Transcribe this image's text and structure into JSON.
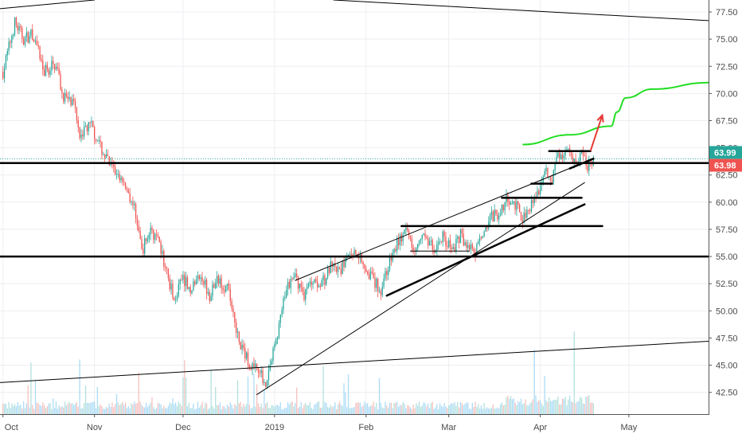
{
  "chart_data": {
    "type": "candlestick",
    "title": "",
    "xlabel": "",
    "ylabel": "",
    "ylim": [
      40.5,
      78.6
    ],
    "x_ticks": [
      {
        "label": "Oct",
        "day": 0
      },
      {
        "label": "Nov",
        "day": 31
      },
      {
        "label": "Dec",
        "day": 61
      },
      {
        "label": "2019",
        "day": 92
      },
      {
        "label": "Feb",
        "day": 123
      },
      {
        "label": "Mar",
        "day": 151
      },
      {
        "label": "Apr",
        "day": 182
      },
      {
        "label": "May",
        "day": 212
      }
    ],
    "x_range": [
      -1,
      239
    ],
    "y_ticks": [
      42.5,
      45.0,
      47.5,
      50.0,
      52.5,
      55.0,
      57.5,
      60.0,
      62.5,
      65.0,
      67.5,
      70.0,
      72.5,
      75.0,
      77.5
    ],
    "price_path": [
      {
        "day": 0,
        "price": 72.0
      },
      {
        "day": 4,
        "price": 76.5
      },
      {
        "day": 7,
        "price": 75.0
      },
      {
        "day": 10,
        "price": 75.5
      },
      {
        "day": 14,
        "price": 72.0
      },
      {
        "day": 18,
        "price": 72.8
      },
      {
        "day": 20,
        "price": 70.0
      },
      {
        "day": 24,
        "price": 68.8
      },
      {
        "day": 26,
        "price": 66.5
      },
      {
        "day": 30,
        "price": 67.0
      },
      {
        "day": 33,
        "price": 65.0
      },
      {
        "day": 37,
        "price": 63.0
      },
      {
        "day": 41,
        "price": 62.0
      },
      {
        "day": 45,
        "price": 59.0
      },
      {
        "day": 47,
        "price": 55.5
      },
      {
        "day": 50,
        "price": 57.5
      },
      {
        "day": 53,
        "price": 56.0
      },
      {
        "day": 56,
        "price": 53.0
      },
      {
        "day": 58,
        "price": 51.0
      },
      {
        "day": 61,
        "price": 53.0
      },
      {
        "day": 64,
        "price": 52.0
      },
      {
        "day": 67,
        "price": 53.5
      },
      {
        "day": 70,
        "price": 51.5
      },
      {
        "day": 73,
        "price": 53.0
      },
      {
        "day": 76,
        "price": 52.0
      },
      {
        "day": 78,
        "price": 50.0
      },
      {
        "day": 80,
        "price": 47.0
      },
      {
        "day": 83,
        "price": 45.5
      },
      {
        "day": 86,
        "price": 44.5
      },
      {
        "day": 89,
        "price": 43.5
      },
      {
        "day": 91,
        "price": 45.5
      },
      {
        "day": 93,
        "price": 48.0
      },
      {
        "day": 96,
        "price": 52.0
      },
      {
        "day": 99,
        "price": 53.2
      },
      {
        "day": 102,
        "price": 51.5
      },
      {
        "day": 105,
        "price": 53.0
      },
      {
        "day": 108,
        "price": 52.5
      },
      {
        "day": 111,
        "price": 54.0
      },
      {
        "day": 114,
        "price": 53.5
      },
      {
        "day": 117,
        "price": 55.0
      },
      {
        "day": 120,
        "price": 55.5
      },
      {
        "day": 123,
        "price": 54.0
      },
      {
        "day": 126,
        "price": 52.5
      },
      {
        "day": 128,
        "price": 52.0
      },
      {
        "day": 131,
        "price": 54.5
      },
      {
        "day": 134,
        "price": 56.5
      },
      {
        "day": 137,
        "price": 57.2
      },
      {
        "day": 140,
        "price": 55.5
      },
      {
        "day": 143,
        "price": 57.0
      },
      {
        "day": 146,
        "price": 55.5
      },
      {
        "day": 149,
        "price": 57.0
      },
      {
        "day": 152,
        "price": 55.5
      },
      {
        "day": 155,
        "price": 57.0
      },
      {
        "day": 158,
        "price": 55.8
      },
      {
        "day": 160,
        "price": 55.2
      },
      {
        "day": 162,
        "price": 57.0
      },
      {
        "day": 165,
        "price": 58.5
      },
      {
        "day": 168,
        "price": 59.0
      },
      {
        "day": 171,
        "price": 60.5
      },
      {
        "day": 174,
        "price": 59.5
      },
      {
        "day": 176,
        "price": 58.5
      },
      {
        "day": 179,
        "price": 60.0
      },
      {
        "day": 182,
        "price": 61.5
      },
      {
        "day": 184,
        "price": 63.0
      },
      {
        "day": 186,
        "price": 62.0
      },
      {
        "day": 188,
        "price": 64.5
      },
      {
        "day": 190,
        "price": 64.0
      },
      {
        "day": 192,
        "price": 64.5
      },
      {
        "day": 194,
        "price": 63.5
      },
      {
        "day": 196,
        "price": 64.2
      },
      {
        "day": 198,
        "price": 63.3
      },
      {
        "day": 200,
        "price": 63.99
      }
    ],
    "horizontal_levels": [
      {
        "price": 63.6,
        "style": "thick"
      },
      {
        "price": 55.0,
        "style": "thick"
      }
    ],
    "trend_lines": [
      {
        "from": {
          "day": -1,
          "price": 77.8
        },
        "to": {
          "day": 31,
          "price": 78.6
        },
        "width": 1
      },
      {
        "from": {
          "day": 112,
          "price": 78.6
        },
        "to": {
          "day": 239,
          "price": 76.7
        },
        "width": 1
      },
      {
        "from": {
          "day": -1,
          "price": 43.4
        },
        "to": {
          "day": 239,
          "price": 47.2
        },
        "width": 1
      },
      {
        "from": {
          "day": 86,
          "price": 42.3
        },
        "to": {
          "day": 197,
          "price": 61.8
        },
        "width": 1
      },
      {
        "from": {
          "day": 99,
          "price": 52.8
        },
        "to": {
          "day": 200,
          "price": 64.0
        },
        "width": 1
      },
      {
        "from": {
          "day": 130,
          "price": 51.4
        },
        "to": {
          "day": 197,
          "price": 59.8
        },
        "width": 2.5
      },
      {
        "from": {
          "day": 135,
          "price": 57.8
        },
        "to": {
          "day": 203,
          "price": 57.8
        },
        "width": 2.5
      },
      {
        "from": {
          "day": 138,
          "price": 55.5
        },
        "to": {
          "day": 158,
          "price": 55.5
        },
        "width": 1
      },
      {
        "from": {
          "day": 169,
          "price": 60.4
        },
        "to": {
          "day": 196,
          "price": 60.4
        },
        "width": 2.5
      },
      {
        "from": {
          "day": 179,
          "price": 61.7
        },
        "to": {
          "day": 186,
          "price": 61.7
        },
        "width": 2.5
      },
      {
        "from": {
          "day": 185,
          "price": 64.7
        },
        "to": {
          "day": 199,
          "price": 64.7
        },
        "width": 2.5
      },
      {
        "from": {
          "day": 192,
          "price": 63.1
        },
        "to": {
          "day": 200,
          "price": 64.0
        },
        "width": 2.5
      }
    ],
    "projection_arrow": {
      "from": {
        "day": 199,
        "price": 64.7
      },
      "to": {
        "day": 203,
        "price": 68.0
      },
      "color": "#e53935"
    },
    "projection_curve": {
      "color": "#22dd22",
      "points": [
        {
          "day": 176,
          "price": 65.3
        },
        {
          "day": 192,
          "price": 66.2
        },
        {
          "day": 206,
          "price": 67.0
        },
        {
          "day": 208,
          "price": 68.3
        },
        {
          "day": 211,
          "price": 69.6
        },
        {
          "day": 220,
          "price": 70.4
        },
        {
          "day": 239,
          "price": 71.0
        }
      ]
    },
    "last_price": {
      "value": "63.99",
      "color": "#26a69a"
    },
    "ref_price": {
      "value": "63.98",
      "color": "#ef5350"
    },
    "candle_up_color": "#26a69a",
    "candle_down_color": "#ef5350",
    "volume_color": "#9fd6f5"
  }
}
